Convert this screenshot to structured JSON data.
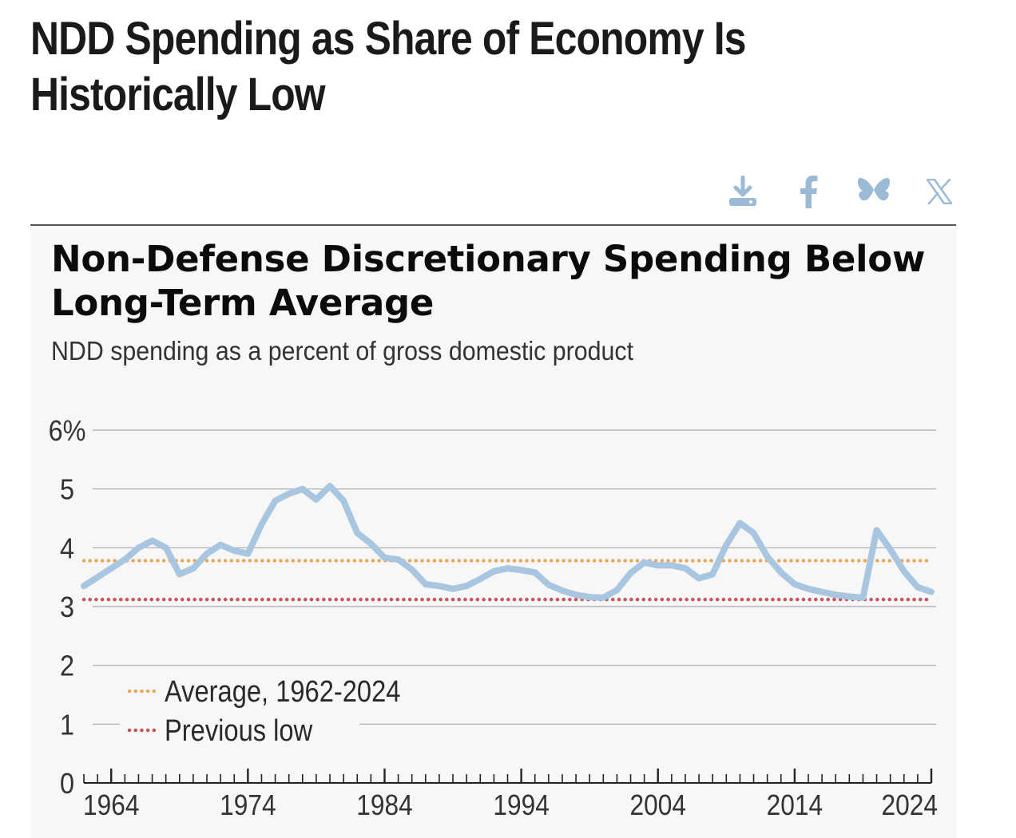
{
  "page": {
    "heading": "NDD Spending as Share of Economy Is Historically Low"
  },
  "share": {
    "icons": [
      "download-icon",
      "facebook-icon",
      "bluesky-icon",
      "x-icon"
    ],
    "color": "#9bbad6"
  },
  "chart_data": {
    "type": "line",
    "title": "Non-Defense Discretionary Spending Below Long-Term Average",
    "subtitle": "NDD spending as a percent of gross domestic product",
    "xlabel": "",
    "ylabel": "",
    "x_tick_labels": [
      "1964",
      "1974",
      "1984",
      "1994",
      "2004",
      "2014",
      "2024"
    ],
    "x_ticks": [
      1964,
      1974,
      1984,
      1994,
      2004,
      2014,
      2024
    ],
    "y_tick_labels": [
      "0",
      "1",
      "2",
      "3",
      "4",
      "5",
      "6%"
    ],
    "y_ticks": [
      0,
      1,
      2,
      3,
      4,
      5,
      6
    ],
    "xlim": [
      1962,
      2024
    ],
    "ylim": [
      0,
      6
    ],
    "grid": true,
    "legend": {
      "placement": "bottom-left",
      "entries": [
        "Average, 1962-2024",
        "Previous low"
      ]
    },
    "series": [
      {
        "color": "#a9c6e0",
        "x": [
          1962,
          1963,
          1964,
          1965,
          1966,
          1967,
          1968,
          1969,
          1970,
          1971,
          1972,
          1973,
          1974,
          1975,
          1976,
          1977,
          1978,
          1979,
          1980,
          1981,
          1982,
          1983,
          1984,
          1985,
          1986,
          1987,
          1988,
          1989,
          1990,
          1991,
          1992,
          1993,
          1994,
          1995,
          1996,
          1997,
          1998,
          1999,
          2000,
          2001,
          2002,
          2003,
          2004,
          2005,
          2006,
          2007,
          2008,
          2009,
          2010,
          2011,
          2012,
          2013,
          2014,
          2015,
          2016,
          2017,
          2018,
          2019,
          2020,
          2021,
          2022,
          2023,
          2024
        ],
        "values": [
          3.35,
          3.5,
          3.65,
          3.8,
          4.0,
          4.12,
          4.0,
          3.55,
          3.65,
          3.9,
          4.05,
          3.95,
          3.9,
          4.4,
          4.8,
          4.92,
          5.0,
          4.82,
          5.05,
          4.8,
          4.25,
          4.07,
          3.83,
          3.8,
          3.63,
          3.38,
          3.35,
          3.3,
          3.35,
          3.47,
          3.6,
          3.65,
          3.62,
          3.58,
          3.37,
          3.27,
          3.2,
          3.16,
          3.15,
          3.28,
          3.57,
          3.75,
          3.7,
          3.7,
          3.65,
          3.48,
          3.55,
          4.05,
          4.42,
          4.25,
          3.85,
          3.58,
          3.38,
          3.3,
          3.25,
          3.2,
          3.17,
          3.15,
          4.3,
          3.97,
          3.6,
          3.33,
          3.25
        ]
      },
      {
        "name": "Average, 1962-2024",
        "color": "#e8a85c",
        "style": "dotted",
        "x": [
          1962,
          2024
        ],
        "values": [
          3.78,
          3.78
        ]
      },
      {
        "name": "Previous low",
        "color": "#c8545d",
        "style": "dotted",
        "x": [
          1962,
          2024
        ],
        "values": [
          3.12,
          3.12
        ]
      }
    ]
  }
}
